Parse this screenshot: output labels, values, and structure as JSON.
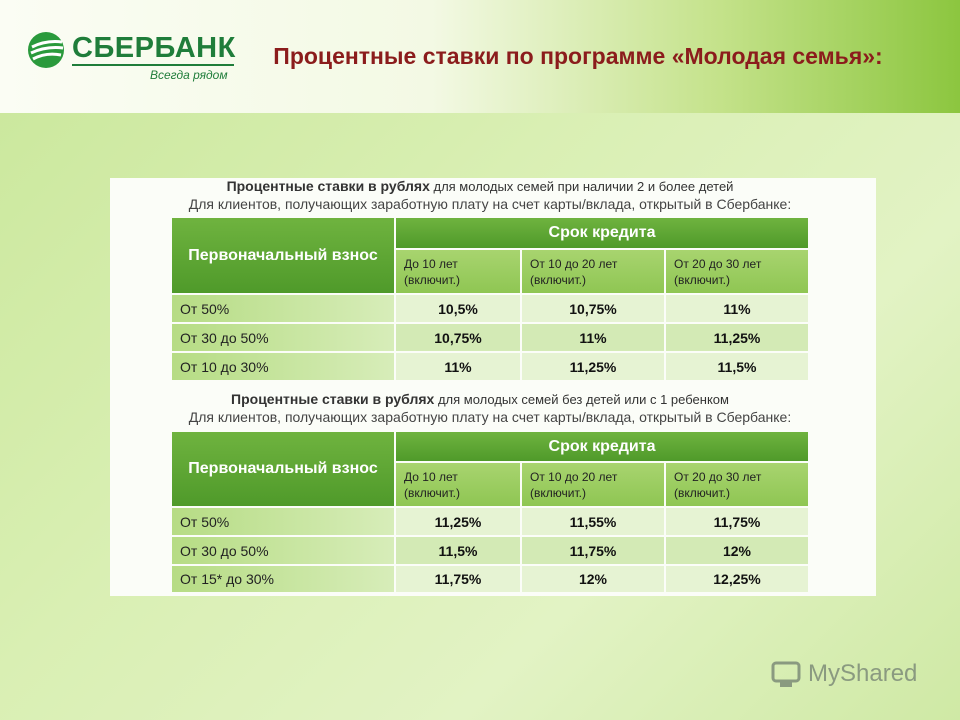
{
  "logo": {
    "name": "СБЕРБАНК",
    "slogan": "Всегда рядом"
  },
  "title": "Процентные ставки по программе «Молодая семья»:",
  "tables": [
    {
      "caption_bold": "Процентные ставки в рублях",
      "caption_rest": "для молодых семей при наличии 2 и более детей",
      "subcaption": "Для клиентов, получающих заработную плату на счет карты/вклада, открытый в Сбербанке:",
      "row_header": "Первоначальный взнос",
      "group_header": "Срок кредита",
      "columns": [
        "До 10 лет (включит.)",
        "От 10 до 20 лет (включит.)",
        "От 20 до 30 лет (включит.)"
      ],
      "rows": [
        [
          "От 50%",
          "10,5%",
          "10,75%",
          "11%"
        ],
        [
          "От 30 до 50%",
          "10,75%",
          "11%",
          "11,25%"
        ],
        [
          "От 10 до 30%",
          "11%",
          "11,25%",
          "11,5%"
        ]
      ]
    },
    {
      "caption_bold": "Процентные ставки в рублях",
      "caption_rest": "для молодых семей без детей или  с 1 ребенком",
      "subcaption": "Для клиентов, получающих заработную плату на счет карты/вклада, открытый в Сбербанке:",
      "row_header": "Первоначальный взнос",
      "group_header": "Срок кредита",
      "columns": [
        "До 10 лет (включит.)",
        "От 10 до 20 лет (включит.)",
        "От 20 до 30 лет (включит.)"
      ],
      "rows": [
        [
          "От 50%",
          "11,25%",
          "11,55%",
          "11,75%"
        ],
        [
          "От 30 до 50%",
          "11,5%",
          "11,75%",
          "12%"
        ],
        [
          "От 15* до 30%",
          "11,75%",
          "12%",
          "12,25%"
        ]
      ]
    }
  ],
  "watermark": "MyShared"
}
